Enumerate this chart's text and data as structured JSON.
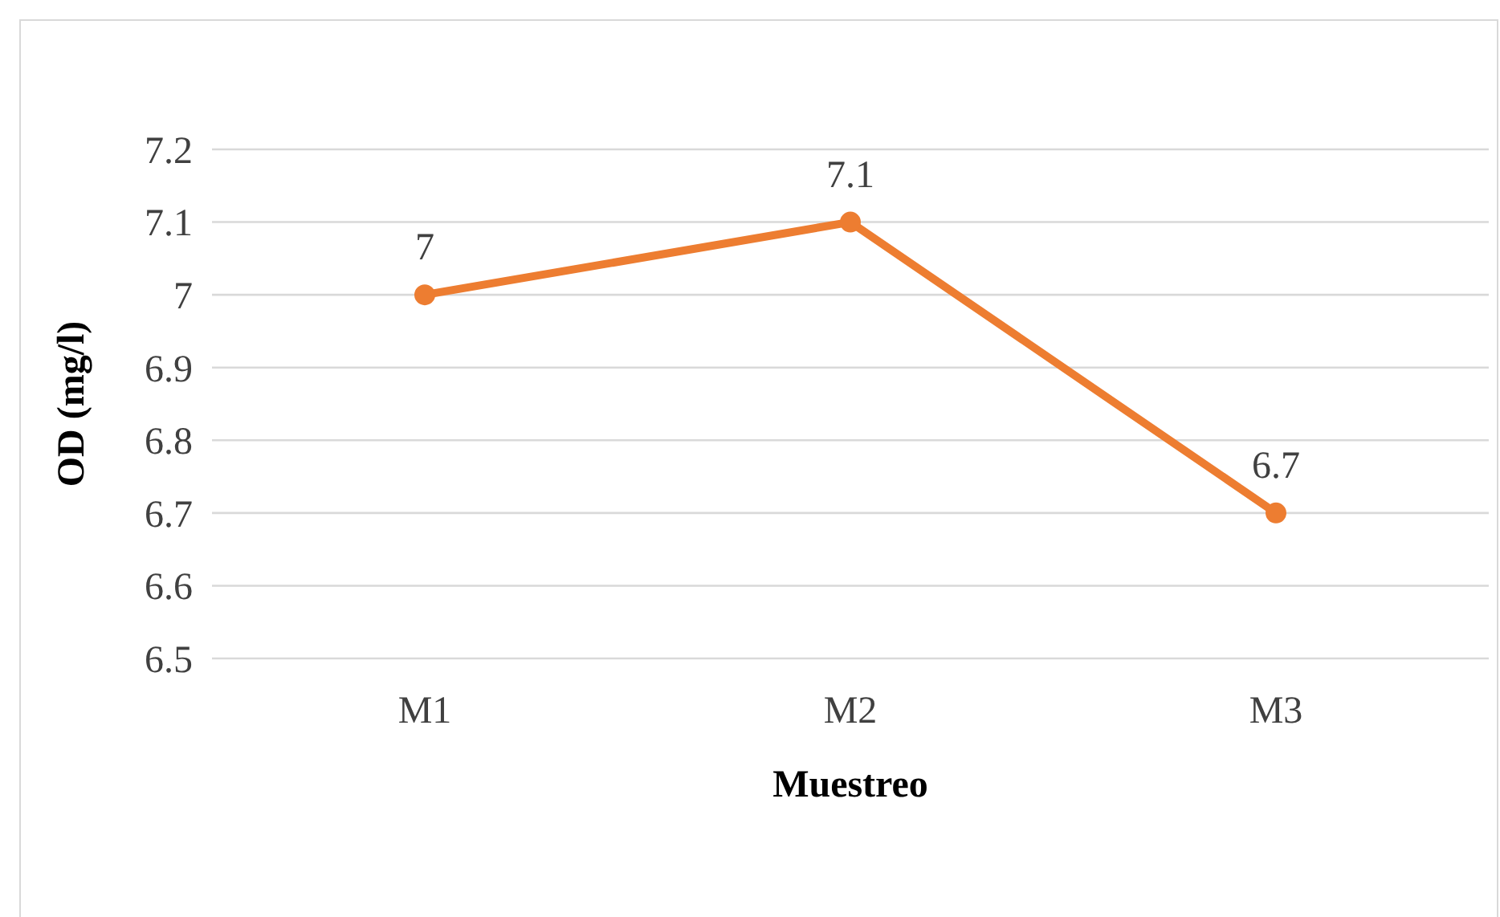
{
  "chart_data": {
    "type": "line",
    "xlabel": "Muestreo",
    "ylabel": "OD (mg/l)",
    "categories": [
      "M1",
      "M2",
      "M3"
    ],
    "series": [
      {
        "color": "#ed7d31",
        "values": [
          7,
          7.1,
          6.7
        ]
      }
    ],
    "ylim": [
      6.5,
      7.2
    ],
    "yticks": [
      {
        "value": 6.5,
        "label": "6.5"
      },
      {
        "value": 6.6,
        "label": "6.6"
      },
      {
        "value": 6.7,
        "label": "6.7"
      },
      {
        "value": 6.8,
        "label": "6.8"
      },
      {
        "value": 6.9,
        "label": "6.9"
      },
      {
        "value": 7,
        "label": "7"
      },
      {
        "value": 7.1,
        "label": "7.1"
      },
      {
        "value": 7.2,
        "label": "7.2"
      }
    ],
    "grid": "y",
    "marker": "circle",
    "line_style": "solid",
    "data_labels": true
  }
}
